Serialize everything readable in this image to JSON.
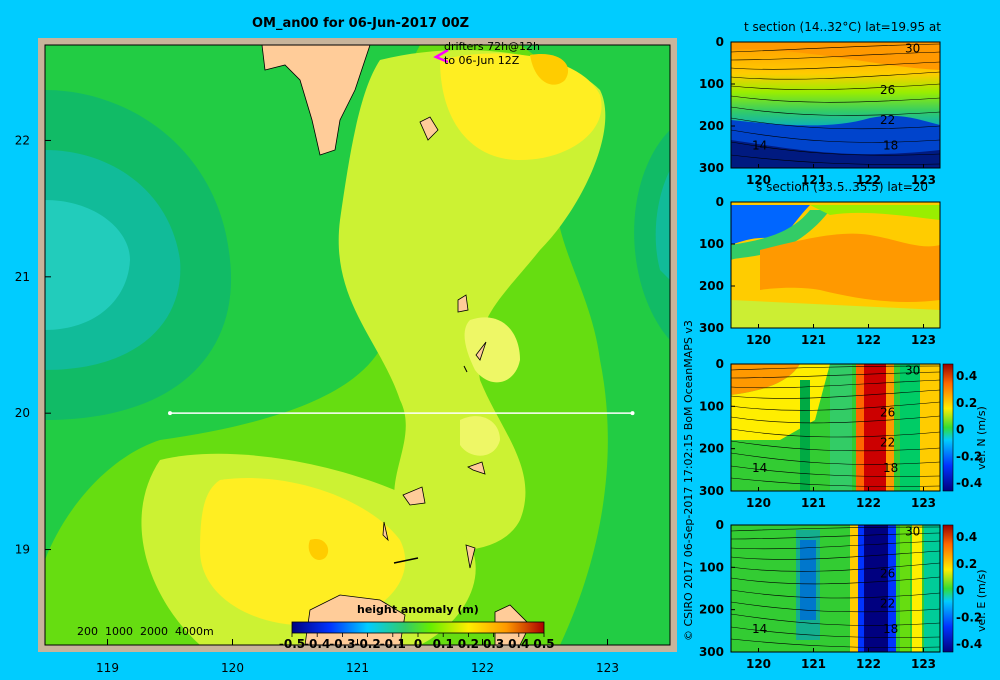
{
  "main_title": "OM_an00 for 06-Jun-2017 00Z",
  "drifters_label_1": "drifters 72h@12h",
  "drifters_label_2": "to 06-Jun 12Z",
  "depth_contours_label": "200  1000  2000  4000m",
  "colorbar_title": "height anomaly  (m)",
  "copyright": "© CSIRO 2017   06-Sep-2017 17:02:15 BoM OceanMAPS v3",
  "colors": {
    "background": "#00ccff",
    "land": "#ffcc99",
    "frame": "#c8b49b",
    "transect": "#ffffff",
    "drifter": "#ff00ff"
  },
  "chart_data": [
    {
      "type": "heatmap",
      "title": "OM_an00 for 06-Jun-2017 00Z",
      "xlabel": "",
      "ylabel": "",
      "xlim": [
        118.5,
        123.5
      ],
      "ylim": [
        18.3,
        22.7
      ],
      "xticks": [
        119,
        120,
        121,
        122,
        123
      ],
      "yticks": [
        19,
        20,
        21,
        22
      ],
      "colorbar": {
        "label": "height anomaly  (m)",
        "min": -0.5,
        "max": 0.5,
        "ticks": [
          "-0.5",
          "-0.4",
          "-0.3",
          "-0.2",
          "-0.1",
          "0",
          "0.1",
          "0.2",
          "0.3",
          "0.4",
          "0.5"
        ]
      },
      "transect": {
        "lat": 20,
        "lon_start": 119.5,
        "lon_end": 123.2
      },
      "features": [
        {
          "name": "cool anomaly west",
          "lon": 119.0,
          "lat": 21.0,
          "value": -0.15
        },
        {
          "name": "warm anomaly north-east",
          "lon": 122.4,
          "lat": 22.4,
          "value": 0.3
        },
        {
          "name": "warm anomaly south",
          "lon": 120.7,
          "lat": 18.9,
          "value": 0.2
        },
        {
          "name": "cool anomaly east",
          "lon": 123.4,
          "lat": 21.0,
          "value": -0.05
        }
      ]
    },
    {
      "type": "heatmap",
      "title": "t section (14..32°C) lat=19.95 at",
      "xlabel": "",
      "ylabel": "",
      "xlim": [
        119.5,
        123.3
      ],
      "ylim": [
        300,
        0
      ],
      "xticks": [
        120,
        121,
        122,
        123
      ],
      "yticks": [
        0,
        100,
        200,
        300
      ],
      "contour_labels": [
        "30",
        "26",
        "22",
        "18",
        "14"
      ]
    },
    {
      "type": "heatmap",
      "title": "s section (33.5..35.5) lat=20",
      "xlabel": "",
      "ylabel": "",
      "xlim": [
        119.5,
        123.3
      ],
      "ylim": [
        300,
        0
      ],
      "xticks": [
        120,
        121,
        122,
        123
      ],
      "yticks": [
        0,
        100,
        200,
        300
      ]
    },
    {
      "type": "heatmap",
      "title": "",
      "xlabel": "",
      "ylabel": "vel. N (m/s)",
      "xlim": [
        119.5,
        123.3
      ],
      "ylim": [
        300,
        0
      ],
      "xticks": [
        120,
        121,
        122,
        123
      ],
      "yticks": [
        0,
        100,
        200,
        300
      ],
      "colorbar": {
        "label": "vel. N (m/s)",
        "min": -0.4,
        "max": 0.4,
        "ticks": [
          "0.4",
          "0.2",
          "0",
          "-0.2",
          "-0.4"
        ]
      },
      "contour_labels": [
        "30",
        "26",
        "22",
        "18",
        "14"
      ]
    },
    {
      "type": "heatmap",
      "title": "",
      "xlabel": "",
      "ylabel": "vel. E (m/s)",
      "xlim": [
        119.5,
        123.3
      ],
      "ylim": [
        300,
        0
      ],
      "xticks": [
        120,
        121,
        122,
        123
      ],
      "yticks": [
        0,
        100,
        200,
        300
      ],
      "colorbar": {
        "label": "vel. E (m/s)",
        "min": -0.4,
        "max": 0.4,
        "ticks": [
          "0.4",
          "0.2",
          "0",
          "-0.2",
          "-0.4"
        ]
      },
      "contour_labels": [
        "30",
        "26",
        "22",
        "18",
        "14"
      ]
    }
  ]
}
